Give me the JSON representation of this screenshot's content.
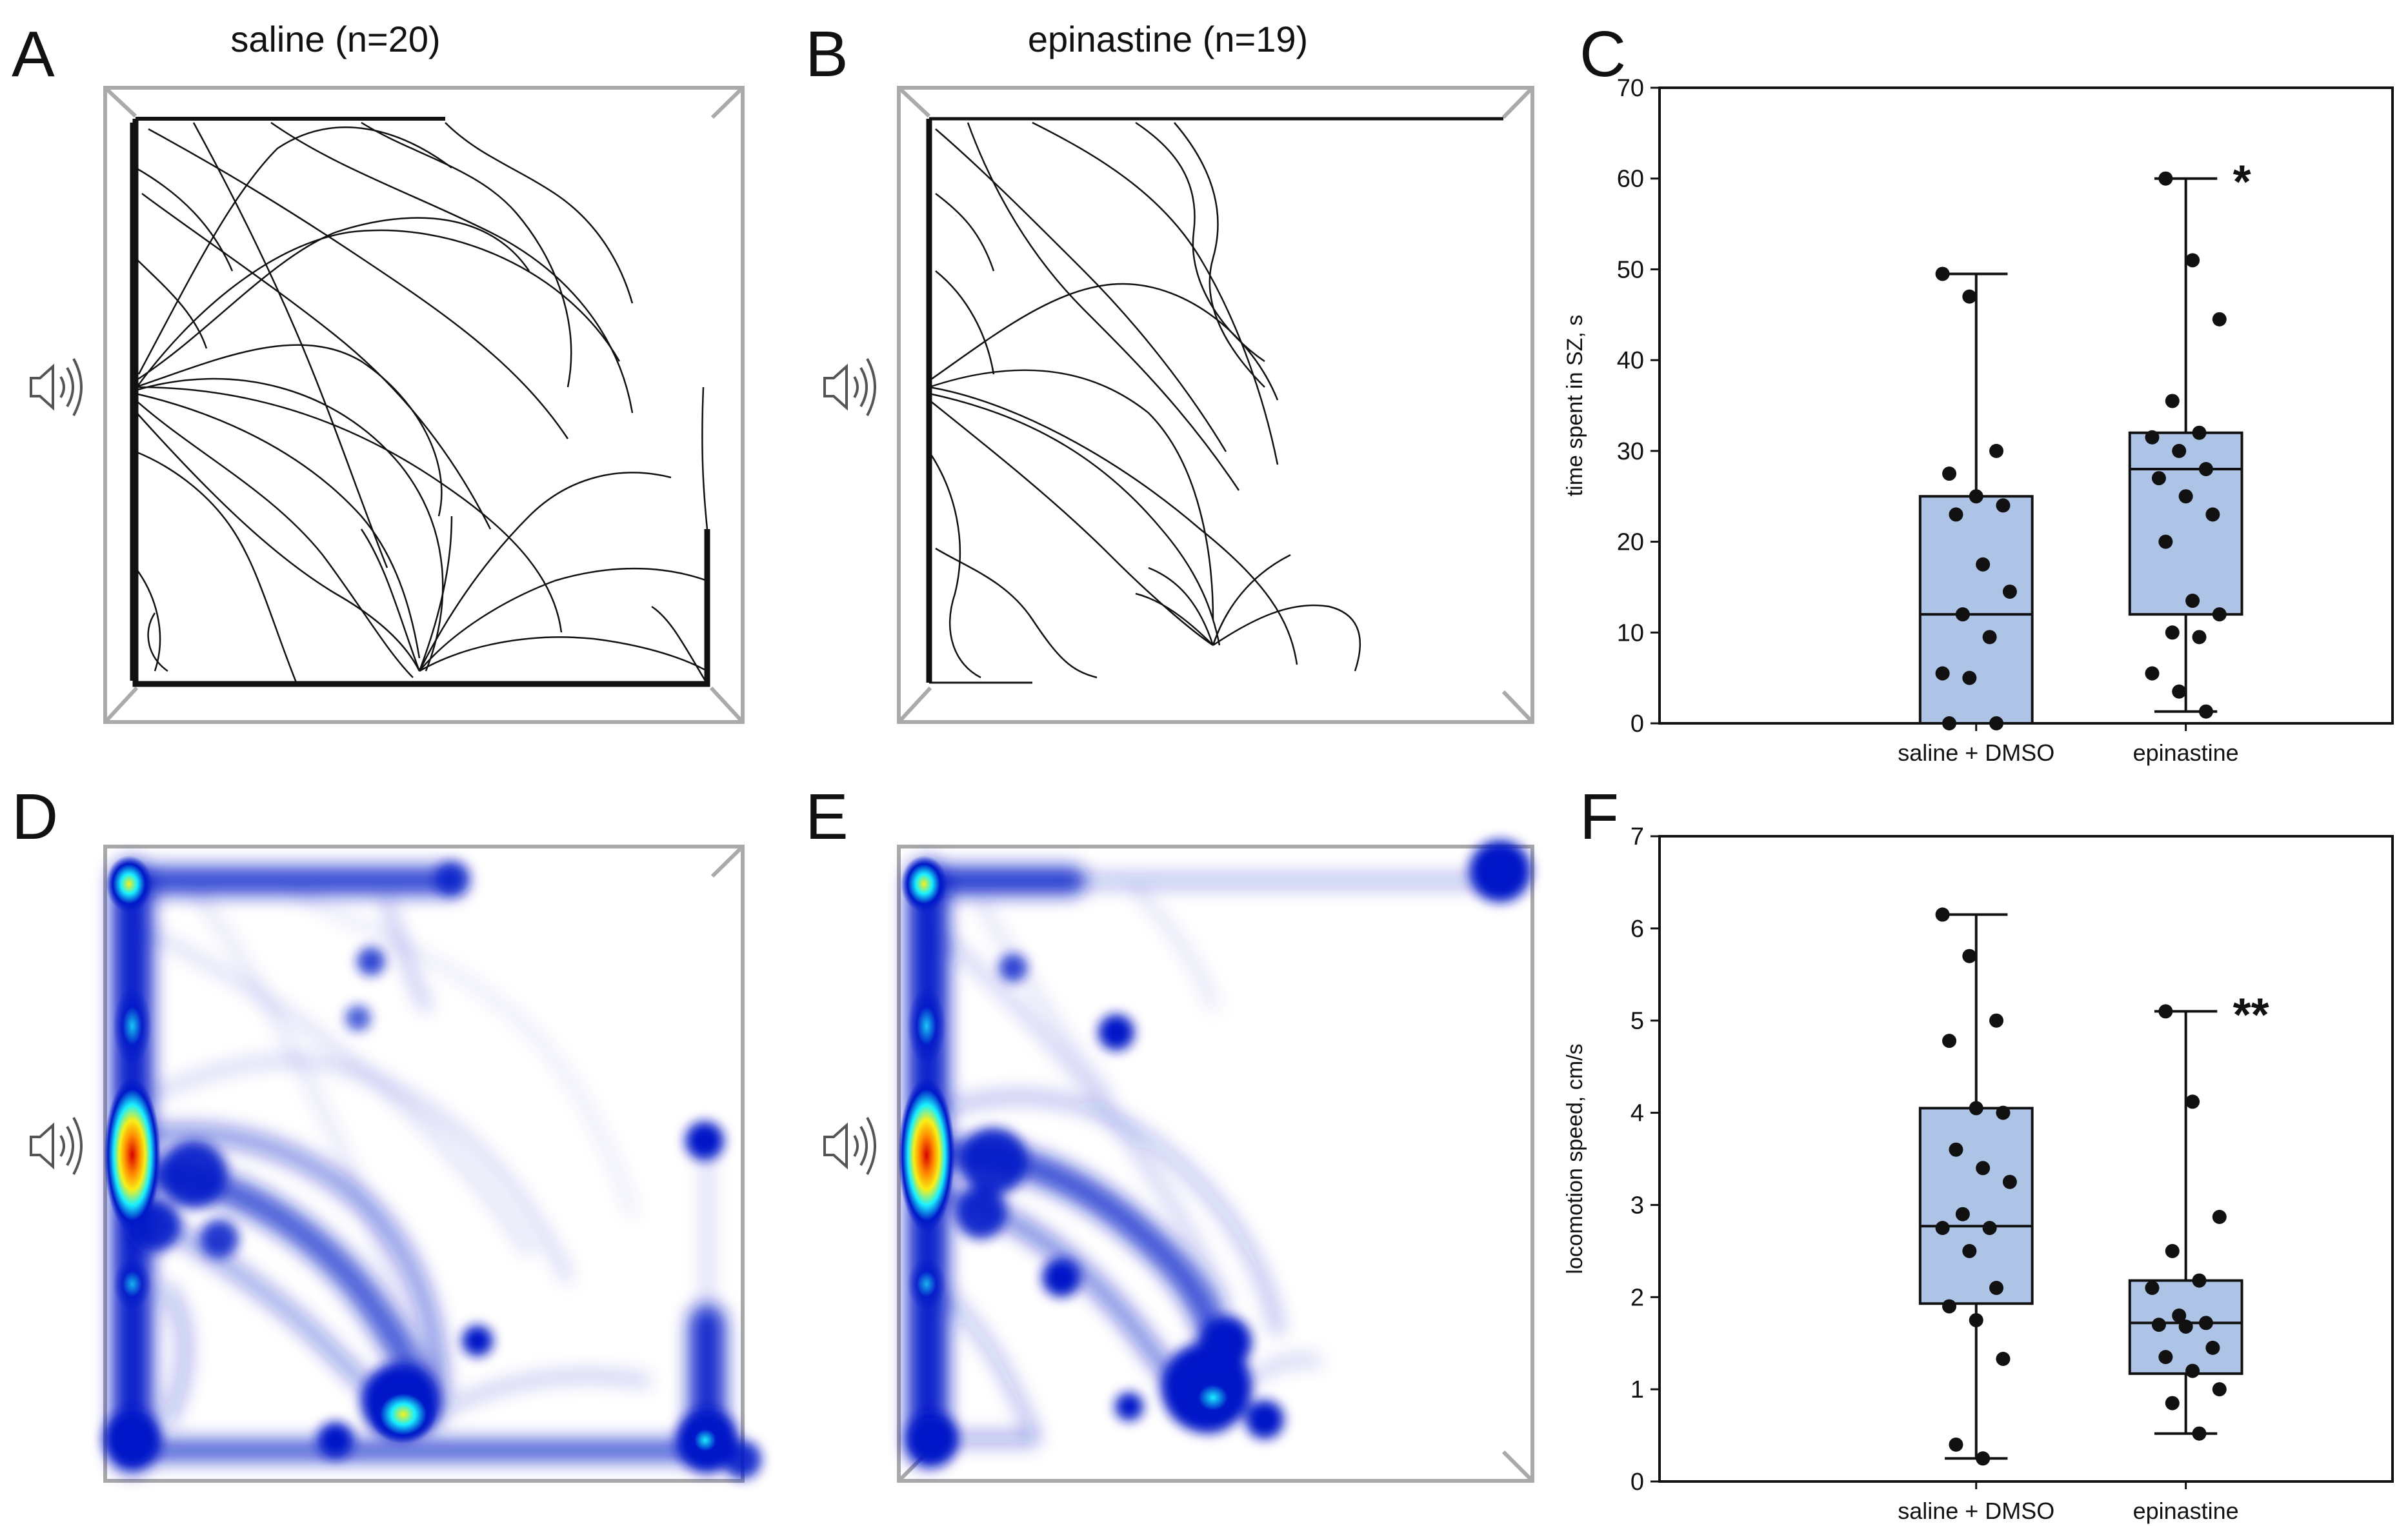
{
  "panel_letters": [
    "A",
    "B",
    "C",
    "D",
    "E",
    "F"
  ],
  "titles": {
    "a": "saline (n=20)",
    "b": "epinastine (n=19)"
  },
  "colors": {
    "box_fill": "#aec4e6",
    "heat_blue": "#0018c8",
    "heat_cyan": "#19f0ff",
    "heat_yellow": "#f7ef18",
    "heat_red": "#d80000",
    "arena": "#aaaaaa"
  },
  "icons": {
    "speaker": "speaker-icon"
  },
  "chart_data": [
    {
      "panel": "C",
      "type": "box",
      "ylabel": "time spent in SZ, s",
      "xlabel": "",
      "categories": [
        "saline + DMSO",
        "epinastine"
      ],
      "ylim": [
        0,
        70
      ],
      "yticks": [
        0,
        10,
        20,
        30,
        40,
        50,
        60,
        70
      ],
      "boxes": [
        {
          "name": "saline + DMSO",
          "min": 0,
          "q1": 0,
          "median": 12,
          "q3": 25,
          "max": 49.5,
          "points": [
            49.5,
            47,
            30,
            27.5,
            25,
            24,
            23,
            17.5,
            14.5,
            12,
            9.5,
            5.5,
            5,
            0,
            0
          ]
        },
        {
          "name": "epinastine",
          "min": 1.3,
          "q1": 12,
          "median": 28,
          "q3": 32,
          "max": 60,
          "points": [
            60,
            51,
            44.5,
            35.5,
            32,
            31.5,
            30,
            28,
            27,
            25,
            23,
            20,
            13.5,
            12,
            10,
            9.5,
            5.5,
            3.5,
            1.3
          ]
        }
      ],
      "annotations": [
        {
          "category": "epinastine",
          "text": "*"
        }
      ]
    },
    {
      "panel": "F",
      "type": "box",
      "ylabel": "locomotion speed, cm/s",
      "xlabel": "",
      "categories": [
        "saline + DMSO",
        "epinastine"
      ],
      "ylim": [
        0,
        7
      ],
      "yticks": [
        0,
        1,
        2,
        3,
        4,
        5,
        6,
        7
      ],
      "boxes": [
        {
          "name": "saline + DMSO",
          "min": 0.25,
          "q1": 1.93,
          "median": 2.77,
          "q3": 4.05,
          "max": 6.15,
          "points": [
            6.15,
            5.7,
            5.0,
            4.78,
            4.05,
            4.0,
            3.6,
            3.4,
            3.25,
            2.9,
            2.75,
            2.75,
            2.5,
            2.1,
            1.9,
            1.75,
            1.33,
            0.4,
            0.25
          ]
        },
        {
          "name": "epinastine",
          "min": 0.52,
          "q1": 1.17,
          "median": 1.72,
          "q3": 2.18,
          "max": 5.1,
          "points": [
            5.1,
            4.12,
            2.87,
            2.5,
            2.18,
            2.1,
            1.8,
            1.72,
            1.7,
            1.68,
            1.45,
            1.35,
            1.2,
            1.0,
            0.85,
            0.52
          ]
        }
      ],
      "annotations": [
        {
          "category": "epinastine",
          "text": "**"
        }
      ]
    }
  ]
}
